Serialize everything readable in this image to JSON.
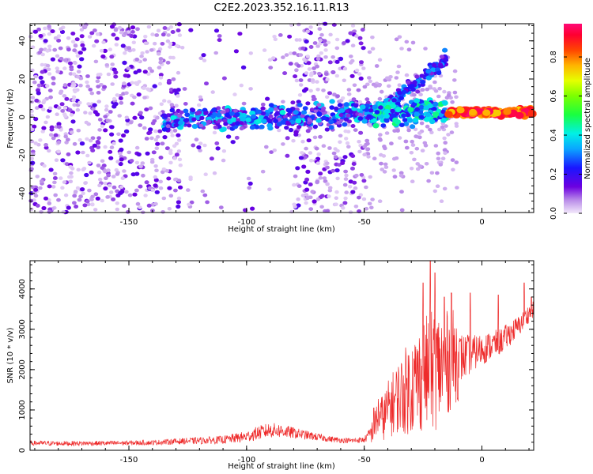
{
  "figure_title": "C2E2.2023.352.16.11.R13",
  "colors": {
    "snr_line": "#ee2b2b",
    "frame": "#000000"
  },
  "chart_data": [
    {
      "type": "heatmap",
      "title": "",
      "xlabel": "Height of straight line (km)",
      "ylabel": "Frequency (Hz)",
      "xlim": [
        -192,
        22
      ],
      "ylim": [
        -50,
        49
      ],
      "xticks": [
        -150,
        -100,
        -50,
        0
      ],
      "yticks": [
        -40,
        -20,
        0,
        20,
        40
      ],
      "colorbar": {
        "label": "Normalized spectral amplitude",
        "range": [
          0,
          0.97
        ],
        "ticks": [
          0.0,
          0.2,
          0.4,
          0.6,
          0.8
        ],
        "colormap": "hsv-purple-to-red"
      },
      "features": [
        {
          "name": "dominant band",
          "x_range": [
            -135,
            22
          ],
          "frequency": [
            -4,
            5
          ],
          "amplitude": [
            0.15,
            0.95
          ]
        },
        {
          "name": "rising branch",
          "x_range": [
            -45,
            -15
          ],
          "frequency": [
            2,
            30
          ],
          "amplitude": [
            0.1,
            0.35
          ]
        },
        {
          "name": "broadband noise",
          "x_range": [
            -192,
            -50
          ],
          "frequency": [
            -50,
            49
          ],
          "amplitude": [
            0.02,
            0.15
          ]
        }
      ]
    },
    {
      "type": "line",
      "title": "",
      "xlabel": "Height of straight line (km)",
      "ylabel": "SNR (10 * v/v)",
      "xlim": [
        -192,
        22
      ],
      "ylim": [
        0,
        4700
      ],
      "xticks": [
        -150,
        -100,
        -50,
        0
      ],
      "yticks": [
        0,
        1000,
        2000,
        3000,
        4000
      ],
      "series": [
        {
          "x": [
            -192,
            -180,
            -160,
            -140,
            -130,
            -120,
            -110,
            -100,
            -95,
            -90,
            -85,
            -80,
            -75,
            -70,
            -65,
            -60,
            -55,
            -50,
            -46,
            -44,
            -42,
            -40,
            -36,
            -32,
            -28,
            -24,
            -20,
            -16,
            -12,
            -8,
            -4,
            0,
            4,
            8,
            12,
            16,
            20,
            22
          ],
          "mean": [
            180,
            170,
            175,
            190,
            220,
            240,
            260,
            340,
            430,
            500,
            480,
            430,
            380,
            330,
            280,
            250,
            240,
            260,
            500,
            900,
            800,
            1000,
            1300,
            1500,
            1700,
            1900,
            2000,
            2100,
            2300,
            2300,
            2400,
            2500,
            2600,
            2700,
            2900,
            3100,
            3400,
            3500
          ],
          "spread": [
            120,
            120,
            120,
            120,
            150,
            170,
            200,
            280,
            350,
            380,
            350,
            280,
            230,
            180,
            150,
            130,
            130,
            150,
            400,
            700,
            700,
            900,
            1100,
            1400,
            1600,
            1800,
            1900,
            1700,
            1500,
            1200,
            900,
            800,
            700,
            650,
            600,
            500,
            450,
            400
          ],
          "peaks": [
            [
              -46,
              1050
            ],
            [
              -22,
              4700
            ],
            [
              -25,
              4150
            ],
            [
              -20,
              4400
            ],
            [
              -16,
              3800
            ],
            [
              -13,
              3900
            ],
            [
              -5,
              3900
            ],
            [
              7,
              3850
            ],
            [
              18,
              4150
            ],
            [
              21,
              3800
            ]
          ]
        }
      ]
    }
  ]
}
